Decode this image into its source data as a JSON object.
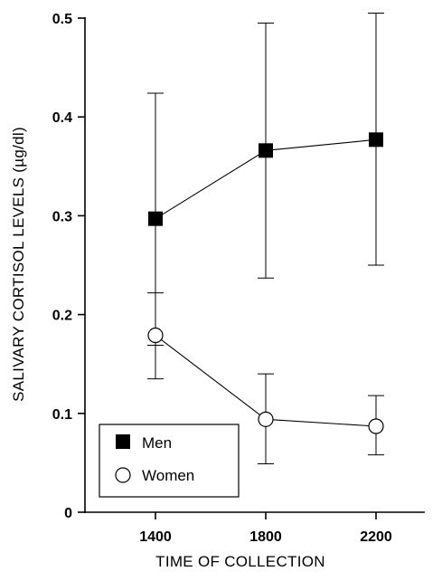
{
  "chart_data": {
    "type": "line",
    "title": "",
    "xlabel": "TIME OF COLLECTION",
    "ylabel": "SALIVARY CORTISOL LEVELS (µg/dl)",
    "x": [
      1400,
      1800,
      2200
    ],
    "x_tick_labels": [
      "1400",
      "1800",
      "2200"
    ],
    "ylim": [
      0,
      0.5
    ],
    "y_ticks": [
      0,
      0.1,
      0.2,
      0.3,
      0.4,
      0.5
    ],
    "y_tick_labels": [
      "0",
      "0.1",
      "0.2",
      "0.3",
      "0.4",
      "0.5"
    ],
    "grid": false,
    "legend_position": "bottom-left",
    "series": [
      {
        "name": "Men",
        "marker": "filled-square",
        "values": [
          0.297,
          0.366,
          0.377
        ],
        "error_upper": [
          0.424,
          0.495,
          0.505
        ],
        "error_lower": [
          0.169,
          0.237,
          0.25
        ]
      },
      {
        "name": "Women",
        "marker": "open-circle",
        "values": [
          0.179,
          0.094,
          0.087
        ],
        "error_upper": [
          0.222,
          0.14,
          0.118
        ],
        "error_lower": [
          0.135,
          0.049,
          0.058
        ]
      }
    ]
  }
}
